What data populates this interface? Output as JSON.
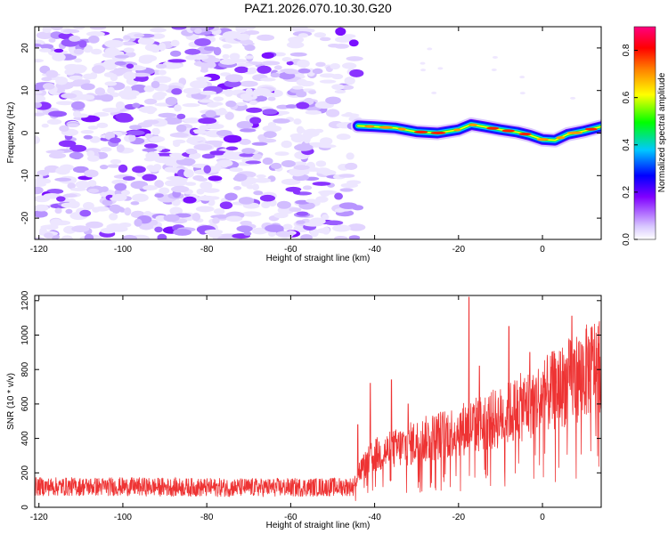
{
  "title": "PAZ1.2026.070.10.30.G20",
  "chart_data": [
    {
      "type": "heatmap",
      "title": "PAZ1.2026.070.10.30.G20",
      "xlabel": "Height of straight line (km)",
      "ylabel": "Frequency (Hz)",
      "xlim": [
        -121,
        14
      ],
      "ylim": [
        -25,
        25
      ],
      "xticks": [
        -120,
        -100,
        -80,
        -60,
        -40,
        -20,
        0
      ],
      "yticks": [
        -20,
        -10,
        0,
        10,
        20
      ],
      "noise_region_x": [
        -121,
        -44
      ],
      "signal_region_x": [
        -44,
        14
      ],
      "signal_track": {
        "x": [
          -44,
          -40,
          -35,
          -30,
          -25,
          -20,
          -17,
          -14,
          -10,
          -6,
          -3,
          0,
          3,
          6,
          10,
          14
        ],
        "freq": [
          1.7,
          1.5,
          1.2,
          0.3,
          0.0,
          0.8,
          2.0,
          1.5,
          0.8,
          0.2,
          -0.5,
          -1.5,
          -1.7,
          -0.3,
          0.5,
          1.5
        ]
      },
      "colorbar": {
        "label": "Normalized spectral amplitude",
        "range": [
          0,
          0.9
        ],
        "ticks": [
          "0.0",
          "0.2",
          "0.4",
          "0.6",
          "0.8"
        ],
        "colors": [
          "#ffffff",
          "#d9c9ff",
          "#8000ff",
          "#0000ff",
          "#00c8ff",
          "#00ff00",
          "#ffff00",
          "#ff8000",
          "#ff0000",
          "#ff0080"
        ]
      }
    },
    {
      "type": "line",
      "xlabel": "Height of straight line (km)",
      "ylabel": "SNR (10 * v/v)",
      "xlim": [
        -121,
        14
      ],
      "ylim": [
        0,
        1230
      ],
      "xticks": [
        -120,
        -100,
        -80,
        -60,
        -40,
        -20,
        0
      ],
      "yticks": [
        0,
        200,
        400,
        600,
        800,
        1000,
        1200
      ],
      "series": [
        {
          "name": "SNR",
          "color": "#ee3333",
          "trend_x": [
            -121,
            -100,
            -80,
            -60,
            -45,
            -44,
            -40,
            -30,
            -20,
            -10,
            0,
            10,
            14
          ],
          "trend_y": [
            120,
            120,
            115,
            115,
            120,
            200,
            300,
            380,
            450,
            520,
            640,
            780,
            850
          ],
          "peaks_x": [
            -44,
            -41,
            -36,
            -32,
            -17.5,
            -15,
            -8,
            -3,
            7
          ],
          "peaks_y": [
            480,
            720,
            740,
            600,
            1220,
            820,
            1050,
            900,
            1110
          ]
        }
      ]
    }
  ]
}
